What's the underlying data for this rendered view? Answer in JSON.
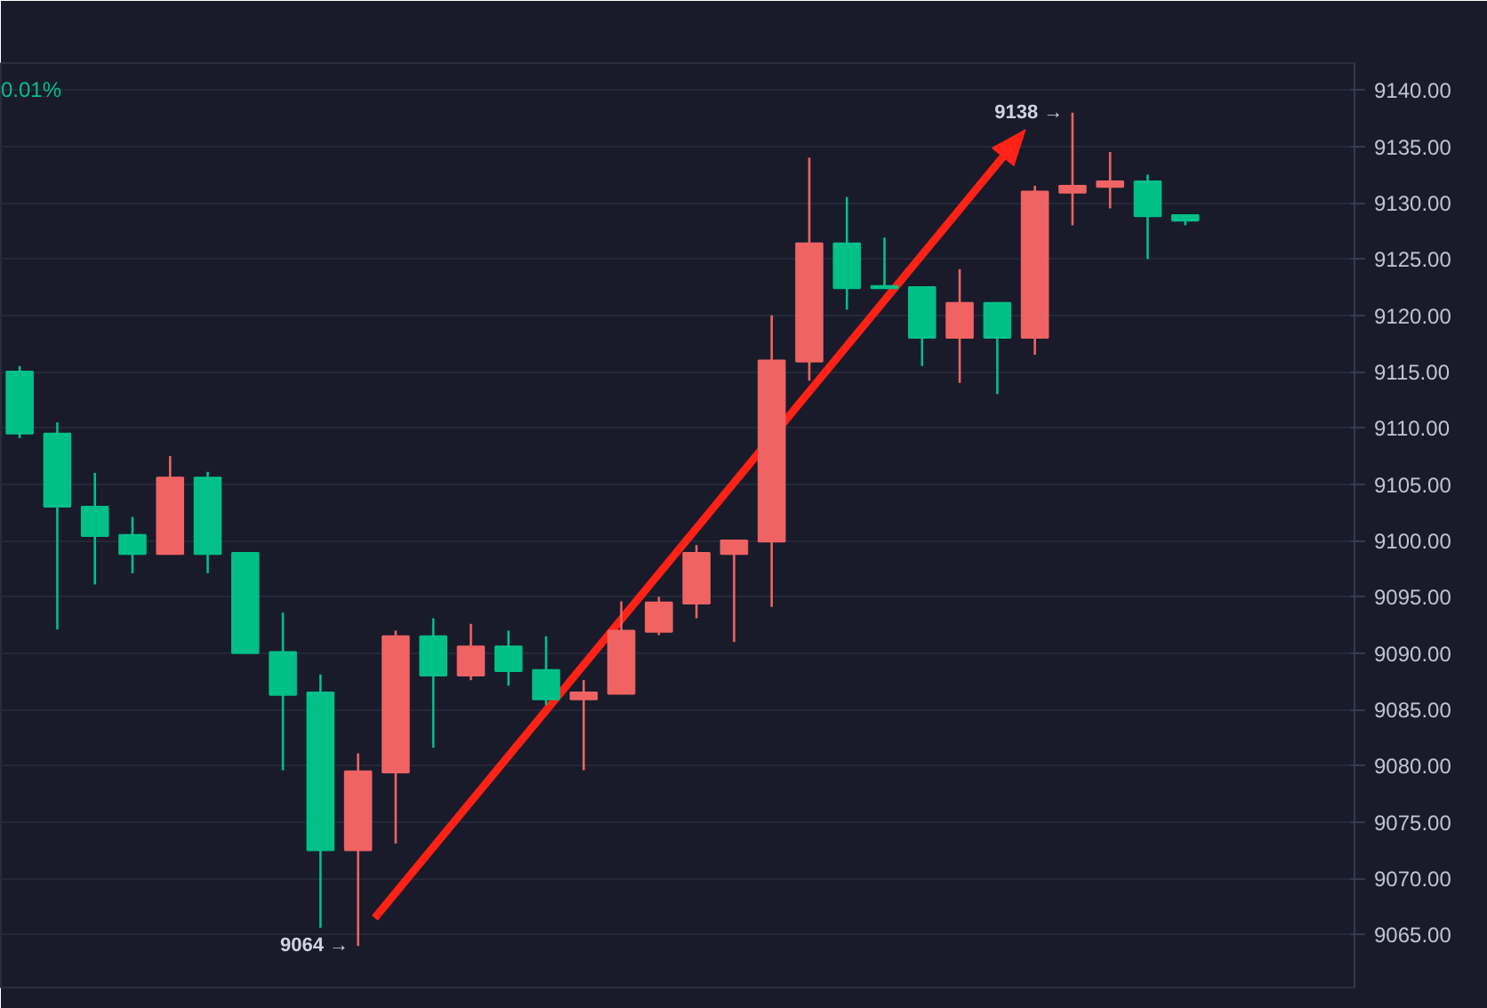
{
  "chart_data": {
    "type": "candlestick",
    "categories": [
      null,
      null,
      null,
      null,
      null,
      null,
      null,
      null,
      null,
      null,
      null,
      null,
      null,
      null,
      null,
      null,
      null,
      null,
      null,
      null,
      null,
      null,
      null,
      null,
      null,
      null,
      null,
      null,
      null,
      null,
      null,
      null,
      null,
      null,
      null,
      null
    ],
    "ohlc": [
      [
        9115.0,
        9115.5,
        9109.1,
        9109.5
      ],
      [
        9109.5,
        9110.5,
        9092.1,
        9103.0
      ],
      [
        9103.0,
        9106.0,
        9096.1,
        9100.4
      ],
      [
        9100.5,
        9102.1,
        9097.1,
        9098.8
      ],
      [
        9098.8,
        9107.5,
        9098.8,
        9105.6
      ],
      [
        9105.6,
        9106.1,
        9097.1,
        9098.8
      ],
      [
        9098.9,
        9098.9,
        9090.0,
        9090.0
      ],
      [
        9090.1,
        9093.6,
        9079.6,
        9086.3
      ],
      [
        9086.5,
        9088.1,
        9065.6,
        9072.5
      ],
      [
        9072.5,
        9081.1,
        9064.0,
        9079.5
      ],
      [
        9079.4,
        9092.0,
        9073.1,
        9091.5
      ],
      [
        9091.5,
        9093.1,
        9081.6,
        9088.0
      ],
      [
        9088.0,
        9092.6,
        9087.6,
        9090.6
      ],
      [
        9090.6,
        9092.0,
        9087.1,
        9088.4
      ],
      [
        9088.5,
        9091.5,
        9085.4,
        9085.9
      ],
      [
        9085.9,
        9087.6,
        9079.6,
        9086.5
      ],
      [
        9086.4,
        9094.6,
        9086.4,
        9092.0
      ],
      [
        9091.9,
        9095.0,
        9091.6,
        9094.5
      ],
      [
        9094.4,
        9099.6,
        9093.1,
        9098.9
      ],
      [
        9098.8,
        9100.0,
        9091.0,
        9100.0
      ],
      [
        9099.9,
        9120.0,
        9094.1,
        9116.0
      ],
      [
        9115.9,
        9134.0,
        9114.2,
        9126.4
      ],
      [
        9126.4,
        9130.5,
        9120.5,
        9122.4
      ],
      [
        9122.6,
        9126.9,
        9122.4,
        9122.4
      ],
      [
        9122.5,
        9122.5,
        9115.5,
        9118.0
      ],
      [
        9118.0,
        9124.1,
        9114.0,
        9121.1
      ],
      [
        9121.1,
        9121.1,
        9113.0,
        9118.0
      ],
      [
        9118.0,
        9131.5,
        9116.5,
        9131.0
      ],
      [
        9130.9,
        9138.0,
        9128.0,
        9131.5
      ],
      [
        9131.4,
        9134.5,
        9129.5,
        9131.9
      ],
      [
        9131.9,
        9132.5,
        9125.0,
        9128.8
      ],
      [
        9128.9,
        9128.9,
        9128.0,
        9128.4
      ],
      null,
      null,
      null,
      null
    ],
    "colors": [
      "#00c087",
      "#00c087",
      "#00c087",
      "#00c087",
      "#ef6363",
      "#00c087",
      "#00c087",
      "#00c087",
      "#00c087",
      "#ef6363",
      "#ef6363",
      "#00c087",
      "#ef6363",
      "#00c087",
      "#00c087",
      "#ef6363",
      "#ef6363",
      "#ef6363",
      "#ef6363",
      "#ef6363",
      "#ef6363",
      "#ef6363",
      "#00c087",
      "#00c087",
      "#00c087",
      "#ef6363",
      "#00c087",
      "#ef6363",
      "#ef6363",
      "#ef6363",
      "#00c087",
      "#00c087",
      null,
      null,
      null,
      null
    ],
    "ylim": [
      9060.3,
      9142.4
    ],
    "yticks": [
      {
        "value": 9065,
        "label": "9065.00"
      },
      {
        "value": 9070,
        "label": "9070.00"
      },
      {
        "value": 9075,
        "label": "9075.00"
      },
      {
        "value": 9080,
        "label": "9080.00"
      },
      {
        "value": 9085,
        "label": "9085.00"
      },
      {
        "value": 9090,
        "label": "9090.00"
      },
      {
        "value": 9095,
        "label": "9095.00"
      },
      {
        "value": 9100,
        "label": "9100.00"
      },
      {
        "value": 9105,
        "label": "9105.00"
      },
      {
        "value": 9110,
        "label": "9110.00"
      },
      {
        "value": 9115,
        "label": "9115.00"
      },
      {
        "value": 9120,
        "label": "9120.00"
      },
      {
        "value": 9125,
        "label": "9125.00"
      },
      {
        "value": 9130,
        "label": "9130.00"
      },
      {
        "value": 9135,
        "label": "9135.00"
      },
      {
        "value": 9140,
        "label": "9140.00"
      }
    ],
    "grid": "y",
    "annotations": [
      "9064 →",
      "9138 →",
      "0.01%"
    ]
  }
}
